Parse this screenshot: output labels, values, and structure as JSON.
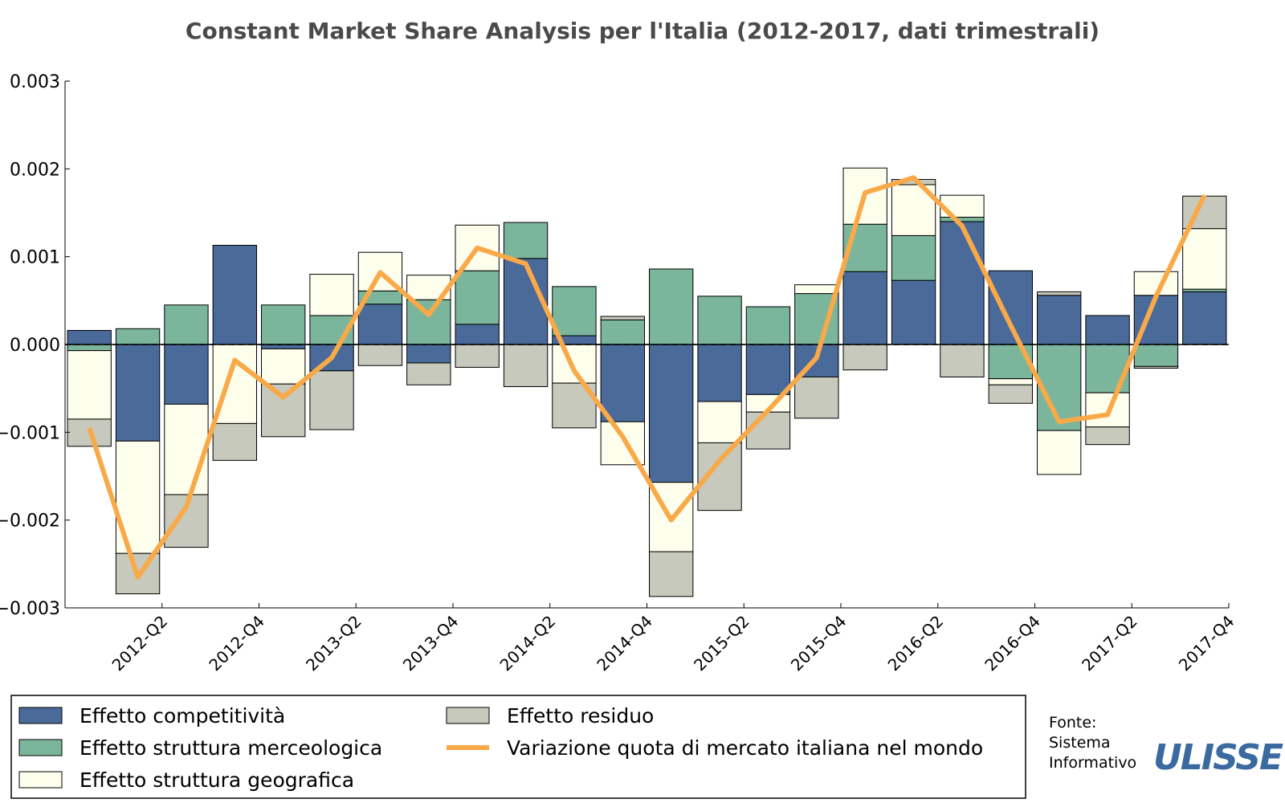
{
  "chart_data": {
    "type": "bar",
    "title": "Constant Market Share Analysis per l'Italia (2012-2017, dati trimestrali)",
    "xlabel": "",
    "ylabel": "",
    "ylim": [
      -0.003,
      0.003
    ],
    "yticks": [
      "0.003",
      "0.002",
      "0.001",
      "0.000",
      "−0.001",
      "−0.002",
      "−0.003"
    ],
    "ytick_values": [
      0.003,
      0.002,
      0.001,
      0.0,
      -0.001,
      -0.002,
      -0.003
    ],
    "stacked": true,
    "categories": [
      "2012-Q1",
      "2012-Q2",
      "2012-Q3",
      "2012-Q4",
      "2013-Q1",
      "2013-Q2",
      "2013-Q3",
      "2013-Q4",
      "2014-Q1",
      "2014-Q2",
      "2014-Q3",
      "2014-Q4",
      "2015-Q1",
      "2015-Q2",
      "2015-Q3",
      "2015-Q4",
      "2016-Q1",
      "2016-Q2",
      "2016-Q3",
      "2016-Q4",
      "2017-Q1",
      "2017-Q2",
      "2017-Q3",
      "2017-Q4"
    ],
    "xtick_labels": [
      "2012-Q2",
      "2012-Q4",
      "2013-Q2",
      "2013-Q4",
      "2014-Q2",
      "2014-Q4",
      "2015-Q2",
      "2015-Q4",
      "2016-Q2",
      "2016-Q4",
      "2017-Q2",
      "2017-Q4"
    ],
    "series": [
      {
        "name": "Effetto competitività",
        "color": "#4a6b9a",
        "values": [
          0.00016,
          -0.0011,
          -0.00068,
          0.00113,
          -5e-05,
          -0.0003,
          0.00046,
          -0.00021,
          0.00023,
          0.00098,
          0.0001,
          -0.00088,
          -0.00157,
          -0.00065,
          -0.00057,
          -0.00037,
          0.00083,
          0.00073,
          0.0014,
          0.00084,
          0.00056,
          0.00033,
          0.00056,
          0.0006
        ]
      },
      {
        "name": "Effetto struttura merceologica",
        "color": "#7bb59b",
        "values": [
          -7e-05,
          0.00018,
          0.00045,
          0.0,
          0.00045,
          0.00033,
          0.00015,
          0.00051,
          0.00061,
          0.00041,
          0.00056,
          0.00028,
          0.00086,
          0.00055,
          0.00043,
          0.00058,
          0.00054,
          0.00051,
          5e-05,
          -0.00039,
          -0.00098,
          -0.00055,
          -0.00025,
          3e-05
        ]
      },
      {
        "name": "Effetto struttura geografica",
        "color": "#fefeed",
        "values": [
          -0.00078,
          -0.00128,
          -0.00103,
          -0.0009,
          -0.0004,
          0.00047,
          0.00044,
          0.00028,
          0.00052,
          0.0,
          -0.00044,
          -0.00049,
          -0.00079,
          -0.00047,
          -0.0002,
          0.0001,
          0.00064,
          0.00058,
          0.00025,
          -7e-05,
          -0.0005,
          -0.00039,
          0.00027,
          0.00069
        ]
      },
      {
        "name": "Effetto residuo",
        "color": "#c6c9bb",
        "values": [
          -0.00031,
          -0.00046,
          -0.0006,
          -0.00042,
          -0.0006,
          -0.00067,
          -0.00024,
          -0.00025,
          -0.00026,
          -0.00048,
          -0.00051,
          4e-05,
          -0.00051,
          -0.00077,
          -0.00042,
          -0.00047,
          -0.00029,
          6e-05,
          -0.00037,
          -0.00021,
          4e-05,
          -0.0002,
          -2e-05,
          0.00037
        ]
      }
    ],
    "line": {
      "name": "Variazione quota di mercato italiana nel mondo",
      "color": "#f9a948",
      "values": [
        -0.00095,
        -0.00265,
        -0.00185,
        -0.00018,
        -0.0006,
        -0.00015,
        0.00082,
        0.00034,
        0.0011,
        0.00092,
        -0.0003,
        -0.00105,
        -0.002,
        -0.00132,
        -0.00075,
        -0.00015,
        0.00173,
        0.0019,
        0.00135,
        0.00022,
        -0.00088,
        -0.0008,
        0.00055,
        0.0017
      ]
    },
    "legend_placement": "bottom-left",
    "grid": false
  },
  "legend": {
    "items": [
      {
        "label": "Effetto competitività",
        "color": "#4a6b9a",
        "kind": "patch"
      },
      {
        "label": "Effetto struttura merceologica",
        "color": "#7bb59b",
        "kind": "patch"
      },
      {
        "label": "Effetto struttura geografica",
        "color": "#fefeed",
        "kind": "patch"
      },
      {
        "label": "Effetto residuo",
        "color": "#c6c9bb",
        "kind": "patch"
      },
      {
        "label": "Variazione quota di mercato italiana nel mondo",
        "color": "#f9a948",
        "kind": "line"
      }
    ]
  },
  "source": {
    "line1": "Fonte:",
    "line2": "Sistema",
    "line3": "Informativo",
    "logo": "ULISSE"
  }
}
